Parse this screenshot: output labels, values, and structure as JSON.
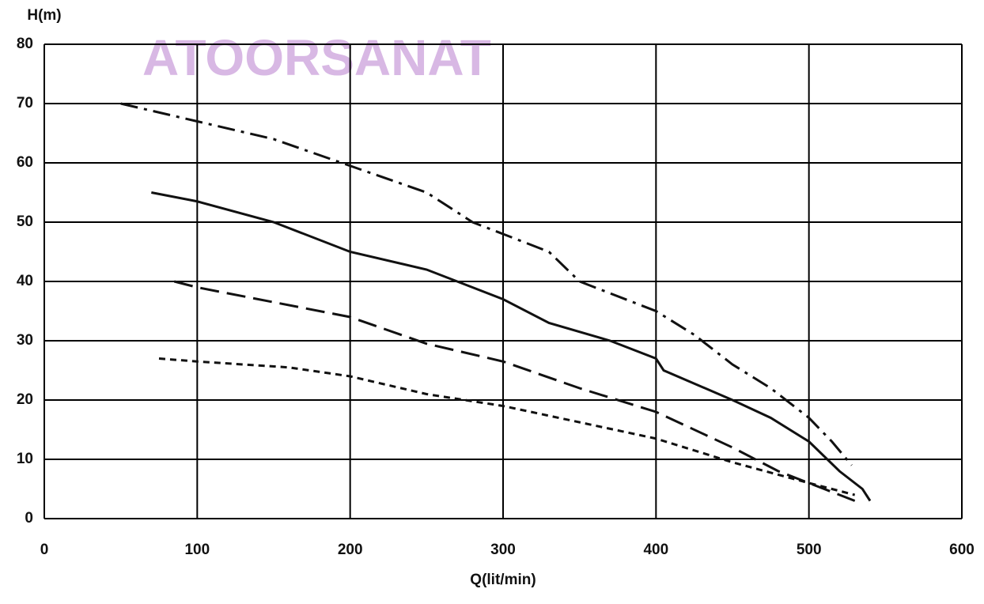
{
  "chart_data": {
    "type": "line",
    "watermark": "ATOORSANAT",
    "x_label": "Q(lit/min)",
    "y_label": "H(m)",
    "xlim": [
      0,
      600
    ],
    "xticks": [
      0,
      100,
      200,
      300,
      400,
      500,
      600
    ],
    "ylim": [
      0,
      80
    ],
    "yticks": [
      0,
      10,
      20,
      30,
      40,
      50,
      60,
      70,
      80
    ],
    "grid": true,
    "series": [
      {
        "color": "#111",
        "dash": "22 8 4 8",
        "x": [
          50,
          100,
          150,
          200,
          250,
          280,
          300,
          330,
          350,
          400,
          425,
          450,
          475,
          500,
          515,
          528
        ],
        "values": [
          70,
          67,
          64,
          59.5,
          55,
          50,
          48,
          45,
          40,
          35,
          31,
          26,
          22,
          17,
          13,
          9
        ]
      },
      {
        "color": "#111",
        "dash": "none",
        "x": [
          70,
          100,
          150,
          200,
          250,
          275,
          300,
          330,
          370,
          400,
          405,
          450,
          475,
          500,
          520,
          535,
          540
        ],
        "values": [
          55,
          53.5,
          50,
          45,
          42,
          39.5,
          37,
          33,
          30,
          27,
          25,
          20,
          17,
          13,
          8,
          5,
          3
        ]
      },
      {
        "color": "#111",
        "dash": "24 10",
        "x": [
          85,
          100,
          150,
          200,
          250,
          300,
          350,
          400,
          450,
          480,
          510,
          530
        ],
        "values": [
          40,
          39,
          36.5,
          34,
          29.5,
          26.5,
          22,
          18,
          12,
          8,
          5,
          3
        ]
      },
      {
        "color": "#111",
        "dash": "8 6",
        "x": [
          75,
          100,
          160,
          200,
          250,
          300,
          400,
          450,
          500,
          530
        ],
        "values": [
          27,
          26.5,
          25.5,
          24,
          21,
          19,
          13.5,
          9.5,
          6,
          4
        ]
      }
    ]
  }
}
